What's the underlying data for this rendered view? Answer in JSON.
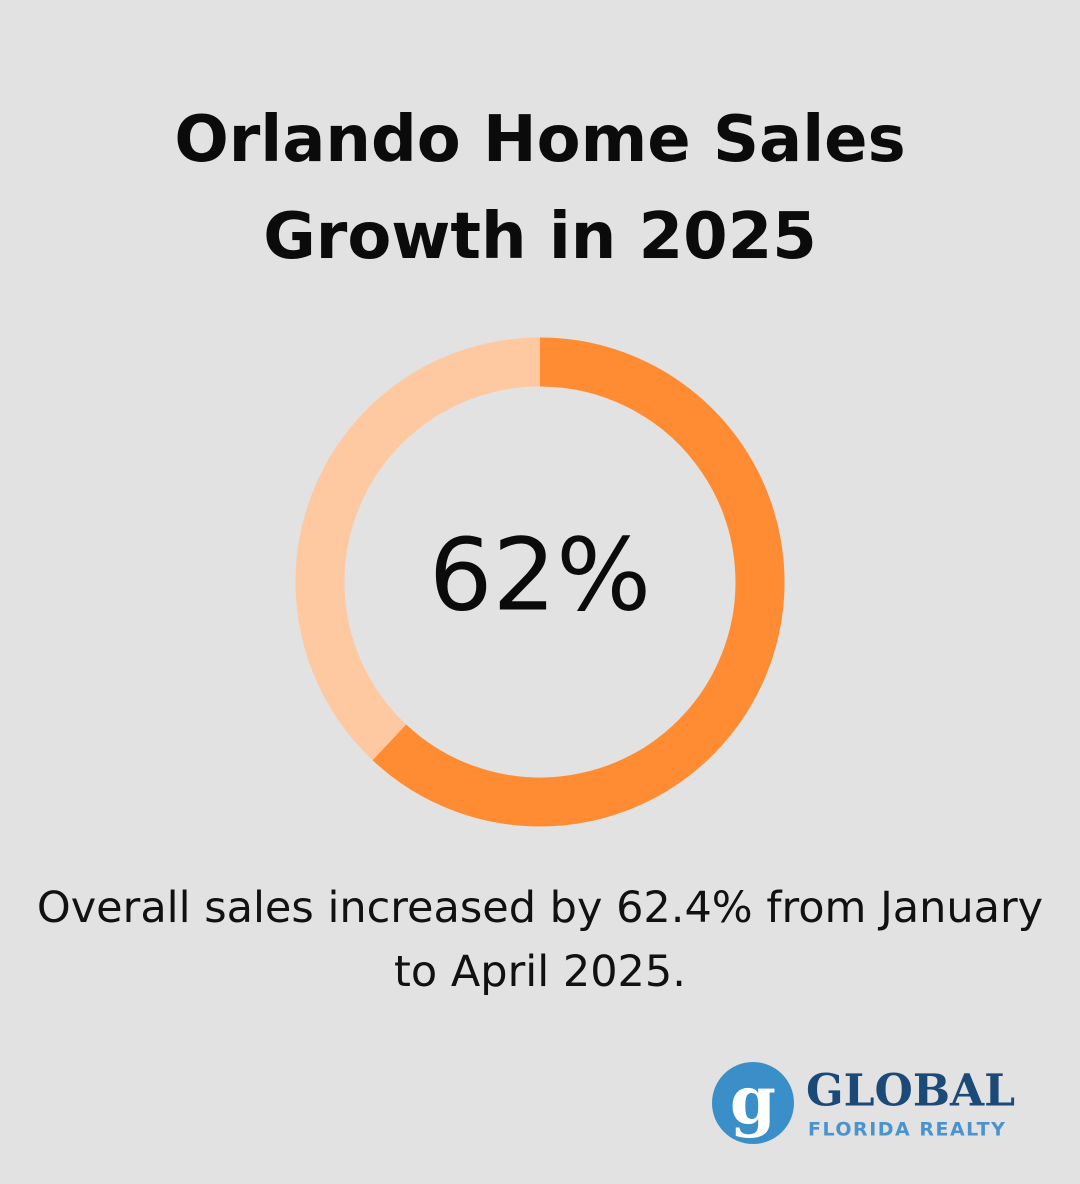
{
  "chart_data": {
    "type": "donut",
    "title": "Orlando Home Sales Growth in 2025",
    "values": [
      62
    ],
    "value_labels": [
      "62%"
    ],
    "ylim": [
      0,
      100
    ],
    "color": "#ff8c33",
    "track_color": "#fec9a0",
    "caption": "Overall sales increased by 62.4% from January to April 2025."
  },
  "logo": {
    "letter": "g",
    "name": "GLOBAL",
    "tagline": "FLORIDA REALTY"
  }
}
